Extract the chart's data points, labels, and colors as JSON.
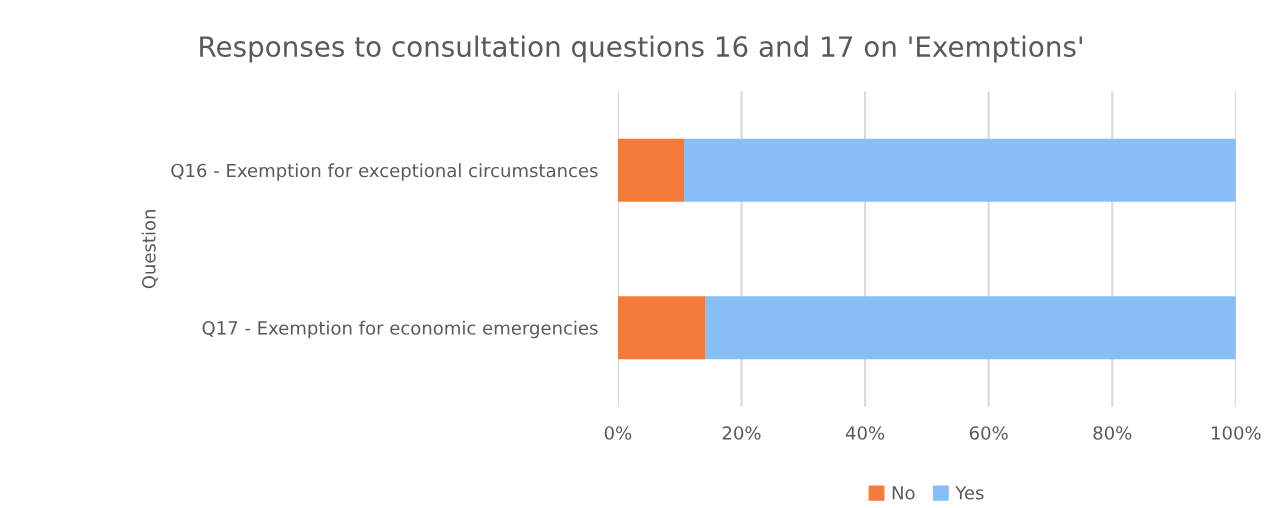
{
  "chart_data": {
    "type": "bar",
    "orientation": "horizontal",
    "stacked": true,
    "title": "Responses to consultation questions 16 and 17 on 'Exemptions'",
    "ylabel": "Question",
    "categories": [
      "Q16 - Exemption for exceptional circumstances",
      "Q17 - Exemption for economic emergencies"
    ],
    "series": [
      {
        "name": "No",
        "color": "#f47b3c",
        "values": [
          10.7,
          14.2
        ]
      },
      {
        "name": "Yes",
        "color": "#87bef5",
        "values": [
          89.3,
          85.8
        ]
      }
    ],
    "xlim": [
      0,
      100
    ],
    "xticks": [
      {
        "value": 0,
        "label": "0%"
      },
      {
        "value": 20,
        "label": "20%"
      },
      {
        "value": 40,
        "label": "40%"
      },
      {
        "value": 60,
        "label": "60%"
      },
      {
        "value": 80,
        "label": "80%"
      },
      {
        "value": 100,
        "label": "100%"
      }
    ],
    "grid": "x",
    "legend": "bottom"
  }
}
